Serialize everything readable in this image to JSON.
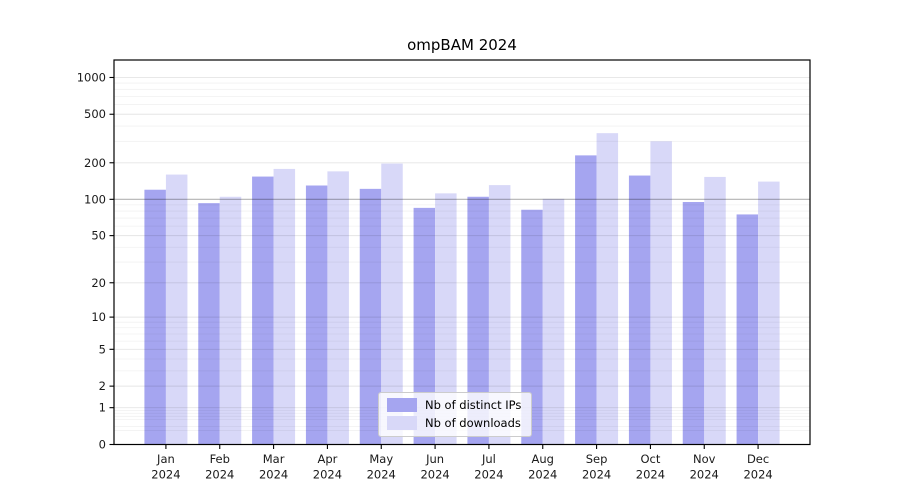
{
  "title": "ompBAM 2024",
  "colors": {
    "ips_bar": "#a5a5f0",
    "downloads_bar": "#d8d8f8",
    "grid_minor": "rgba(0,0,0,0.055)",
    "grid_major": "rgba(0,0,0,0.10)",
    "reference_line": "rgba(0,0,0,0.30)",
    "spine": "#000000"
  },
  "legend": {
    "items": [
      {
        "label": "Nb of distinct IPs",
        "series": "ips"
      },
      {
        "label": "Nb of downloads",
        "series": "downloads"
      }
    ]
  },
  "chart_data": {
    "type": "bar",
    "title": "ompBAM 2024",
    "categories": [
      "Jan",
      "Feb",
      "Mar",
      "Apr",
      "May",
      "Jun",
      "Jul",
      "Aug",
      "Sep",
      "Oct",
      "Nov",
      "Dec"
    ],
    "x_tick_second_line": "2024",
    "series": [
      {
        "name": "Nb of distinct IPs",
        "values": [
          120,
          93,
          154,
          130,
          122,
          85,
          105,
          82,
          230,
          157,
          95,
          75
        ]
      },
      {
        "name": "Nb of downloads",
        "values": [
          160,
          105,
          178,
          170,
          197,
          112,
          131,
          101,
          350,
          300,
          153,
          140
        ]
      }
    ],
    "yscale": "log1p",
    "yticks": [
      0,
      1,
      2,
      5,
      10,
      20,
      50,
      100,
      200,
      500,
      1000
    ],
    "yticks_minor": [
      0.3,
      0.4,
      0.6,
      0.7,
      0.8,
      0.9,
      3,
      4,
      6,
      7,
      8,
      9,
      30,
      40,
      60,
      70,
      80,
      90,
      300,
      400,
      600,
      700,
      800,
      900
    ],
    "ylim": [
      0,
      1390
    ],
    "reference_line": 100,
    "grid": true,
    "legend_position": "lower center"
  }
}
